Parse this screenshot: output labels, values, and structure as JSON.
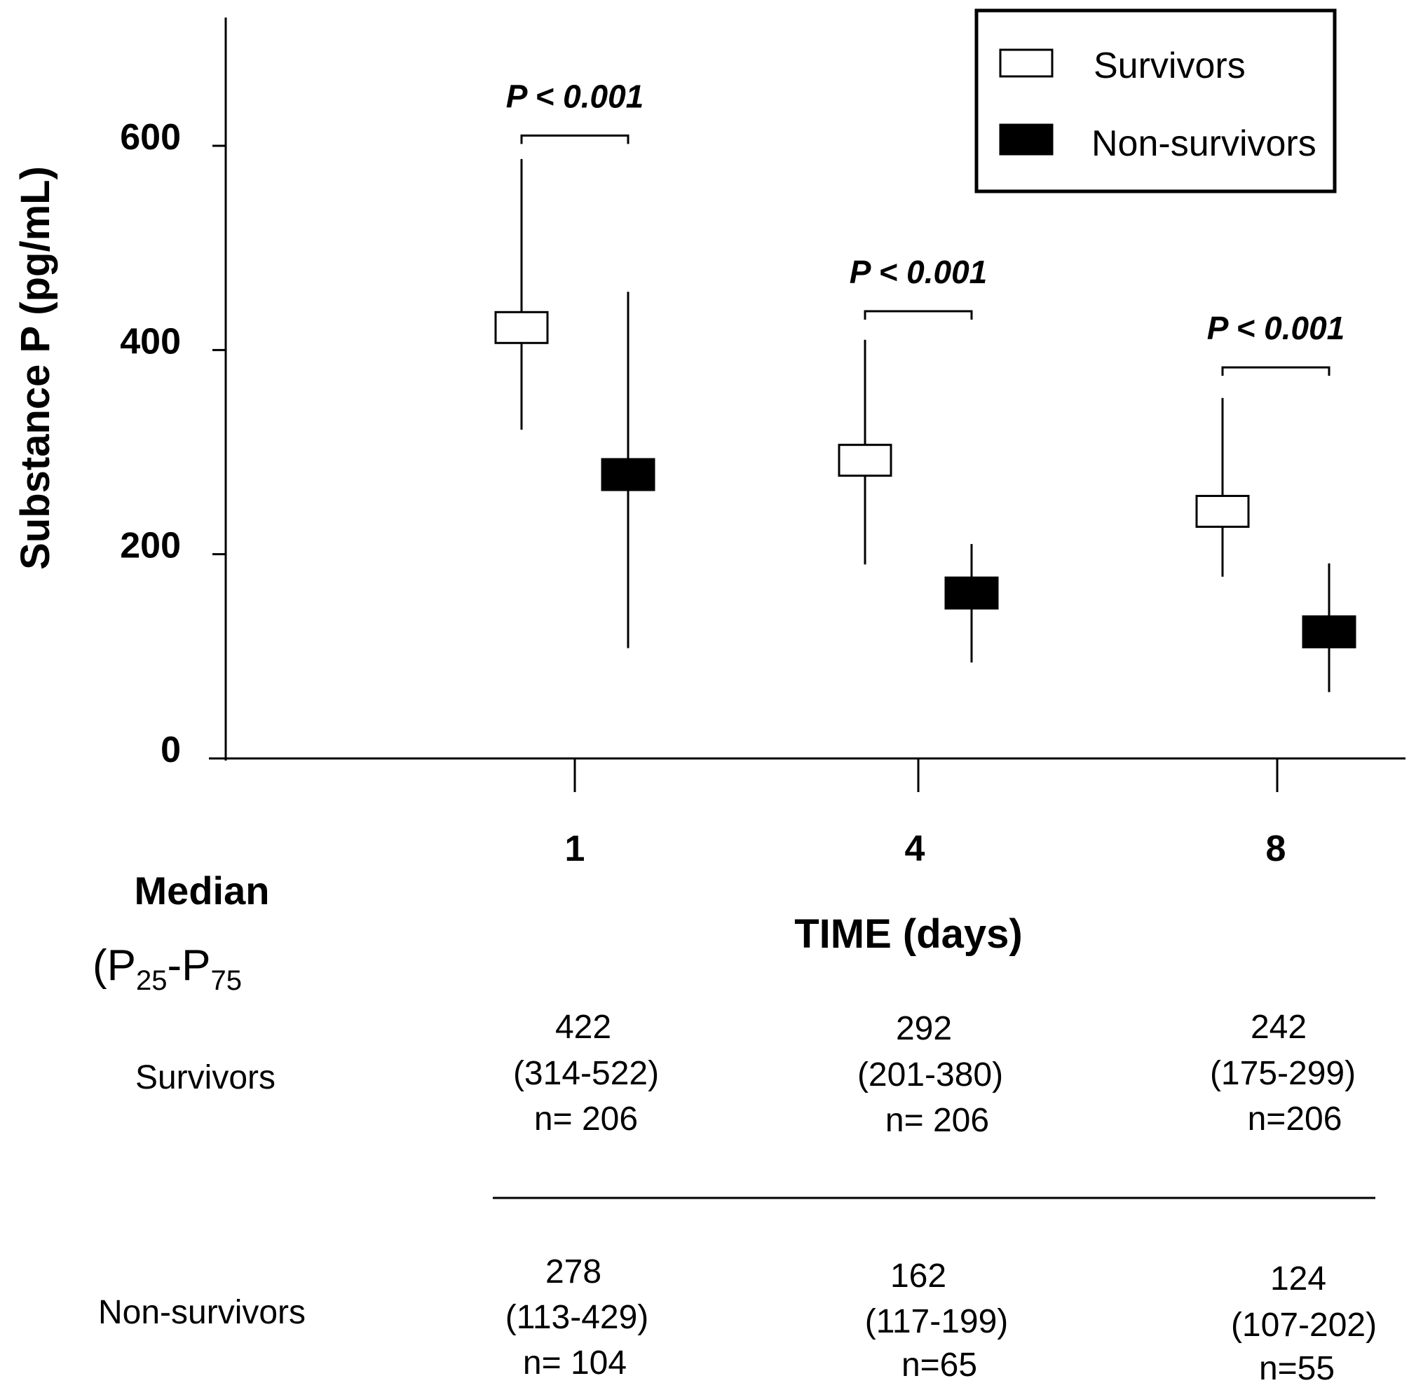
{
  "chart_data": {
    "type": "scatter",
    "ylabel": "Substance P (pg/mL)",
    "xlabel": "TIME (days)",
    "categories": [
      "1",
      "4",
      "8"
    ],
    "ylim": [
      0,
      730
    ],
    "yticks": [
      "0",
      "200",
      "400",
      "600"
    ],
    "ytick_values": [
      0,
      200,
      400,
      600
    ],
    "legend_position": "top-right",
    "series": [
      {
        "name": "Survivors",
        "marker": "open-square",
        "median": [
          422,
          292,
          242
        ],
        "p25": [
          314,
          201,
          175
        ],
        "p75": [
          522,
          380,
          299
        ],
        "whisker_low": [
          322,
          190,
          178
        ],
        "whisker_high": [
          587,
          410,
          353
        ],
        "n": [
          206,
          206,
          206
        ]
      },
      {
        "name": "Non-survivors",
        "marker": "filled-square",
        "median": [
          278,
          162,
          124
        ],
        "p25": [
          113,
          117,
          107
        ],
        "p75": [
          429,
          199,
          202
        ],
        "whisker_low": [
          108,
          94,
          65
        ],
        "whisker_high": [
          457,
          210,
          191
        ],
        "n": [
          104,
          65,
          55
        ]
      }
    ],
    "annotations": [
      {
        "group": "1",
        "text": "P < 0.001"
      },
      {
        "group": "4",
        "text": "P < 0.001"
      },
      {
        "group": "8",
        "text": "P < 0.001"
      }
    ]
  },
  "table": {
    "title": "Median",
    "subtitle_open": "(",
    "subtitle_p": "P",
    "subtitle_25": "25",
    "subtitle_dash": "-P",
    "subtitle_75": "75",
    "rows": [
      {
        "label": "Survivors",
        "cells": [
          {
            "median": "422",
            "range": "(314-522)",
            "n": "n= 206"
          },
          {
            "median": "292",
            "range": "(201-380)",
            "n": "n= 206"
          },
          {
            "median": "242",
            "range": "(175-299)",
            "n": "n=206"
          }
        ]
      },
      {
        "label": "Non-survivors",
        "cells": [
          {
            "median": "278",
            "range": "(113-429)",
            "n": "n= 104"
          },
          {
            "median": "162",
            "range": "(117-199)",
            "n": "n=65"
          },
          {
            "median": "124",
            "range": "(107-202)",
            "n": "n=55"
          }
        ]
      }
    ]
  },
  "legend": {
    "survivors": "Survivors",
    "non_survivors": "Non-survivors"
  }
}
